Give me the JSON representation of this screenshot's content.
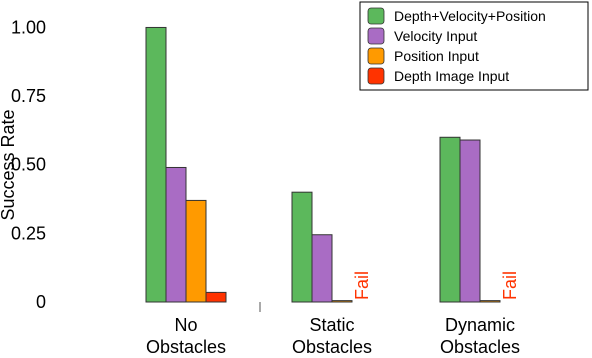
{
  "chart_data": {
    "type": "bar",
    "ylabel": "Success Rate",
    "categories": [
      [
        "No",
        "Obstacles"
      ],
      [
        "Static",
        "Obstacles"
      ],
      [
        "Dynamic",
        "Obstacles"
      ]
    ],
    "series": [
      {
        "name": "Depth+Velocity+Position",
        "color": "#5cb85c",
        "values": [
          1.0,
          0.4,
          0.6
        ]
      },
      {
        "name": "Velocity Input",
        "color": "#a96cc4",
        "values": [
          0.49,
          0.245,
          0.59
        ]
      },
      {
        "name": "Position Input",
        "color": "#ff9a00",
        "values": [
          0.37,
          0.005,
          0.005
        ]
      },
      {
        "name": "Depth Image Input",
        "color": "#ff3300",
        "values": [
          0.035,
          null,
          null
        ],
        "value_labels": [
          null,
          "Fail",
          "Fail"
        ]
      }
    ],
    "ylim": [
      0,
      1.1
    ],
    "yticks": [
      0,
      {
        "value": 0.25,
        "label": "0.25"
      },
      {
        "value": 0.5,
        "label": "0.50"
      },
      {
        "value": 0.75,
        "label": "0.75"
      },
      {
        "value": 1,
        "label": "1.00"
      }
    ],
    "legend": "upper right"
  }
}
